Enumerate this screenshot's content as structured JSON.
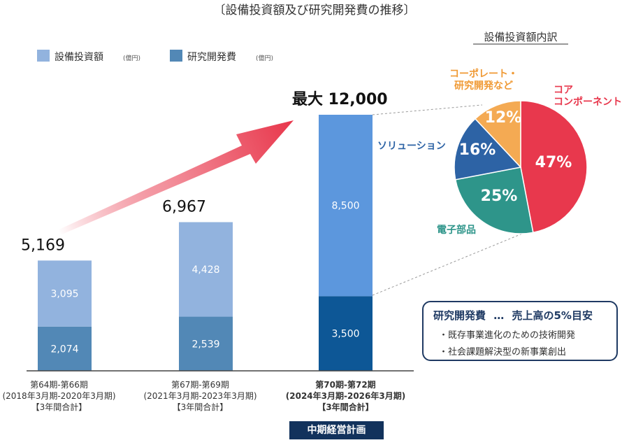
{
  "chart_data": [
    {
      "type": "bar",
      "stacked": true,
      "title": "〔設備投資額及び研究開発費の推移〕",
      "categories": [
        {
          "label": "第64期-第66期",
          "period": "(2018年3月期-2020年3月期)",
          "note": "【3年間合計】"
        },
        {
          "label": "第67期-第69期",
          "period": "(2021年3月期-2023年3月期)",
          "note": "【3年間合計】"
        },
        {
          "label": "第70期-第72期",
          "period": "(2024年3月期-2026年3月期)",
          "note": "【3年間合計】"
        }
      ],
      "series": [
        {
          "name": "研究開発費",
          "unit": "(億円)",
          "values": [
            2074,
            2539,
            3500
          ],
          "labels": [
            "2,074",
            "2,539",
            "3,500"
          ]
        },
        {
          "name": "設備投資額",
          "unit": "(億円)",
          "values": [
            3095,
            4428,
            8500
          ],
          "labels": [
            "3,095",
            "4,428",
            "8,500"
          ]
        }
      ],
      "totals": [
        "5,169",
        "6,967",
        "最大 12,000"
      ],
      "ylim": [
        0,
        12500
      ],
      "badge": "中期経営計画",
      "colors": {
        "rd_light": "#5288b6",
        "capex_light": "#92b3de",
        "rd_dark": "#0d5796",
        "capex_dark": "#5c97dd",
        "arrow": "#e8364b"
      }
    },
    {
      "type": "pie",
      "title": "設備投資額内訳",
      "slices": [
        {
          "name": "コア\nコンポーネント",
          "value": 47,
          "label": "47%",
          "color": "#e8384d",
          "label_color": "#e8384d"
        },
        {
          "name": "電子部品",
          "value": 25,
          "label": "25%",
          "color": "#2e958a",
          "label_color": "#2e958a"
        },
        {
          "name": "ソリューション",
          "value": 16,
          "label": "16%",
          "color": "#2d63a5",
          "label_color": "#2d63a5"
        },
        {
          "name": "コーポレート・\n研究開発など",
          "value": 12,
          "label": "12%",
          "color": "#f4aa53",
          "label_color": "#f09a35"
        }
      ]
    }
  ],
  "callout": {
    "title": "研究開発費",
    "ellipsis": "…",
    "subtitle": "売上高の5%目安",
    "items": [
      "・既存事業進化のための技術開発",
      "・社会課題解決型の新事業創出"
    ]
  }
}
